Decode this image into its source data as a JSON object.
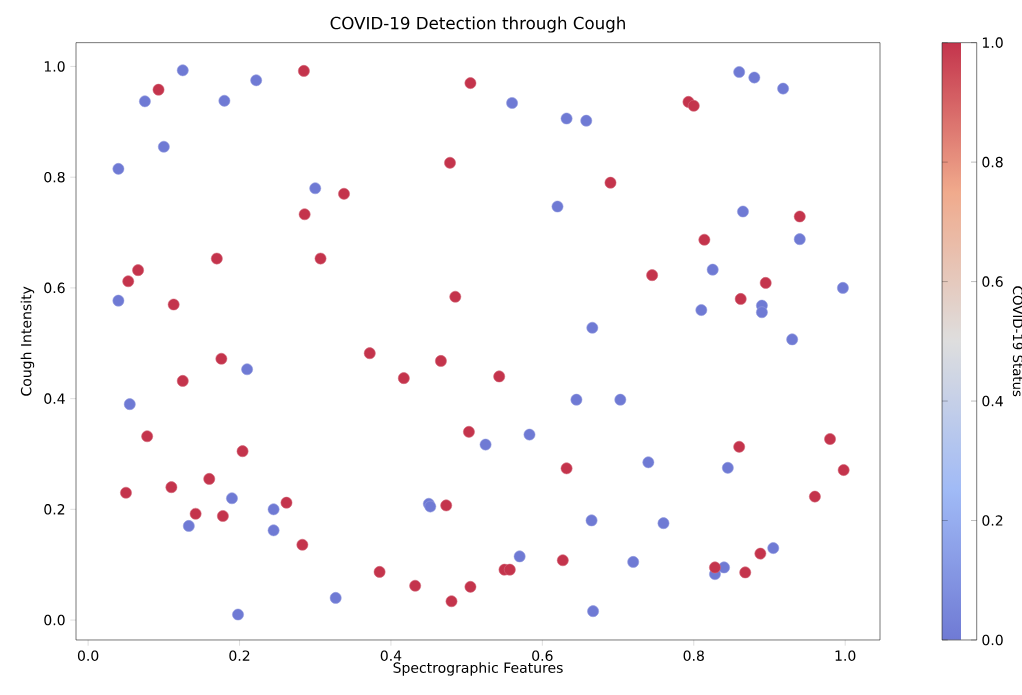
{
  "chart_data": {
    "type": "scatter",
    "title": "COVID-19 Detection through Cough",
    "xlabel": "Spectrographic Features",
    "ylabel": "Cough Intensity",
    "clabel": "COVID-19 Status",
    "marker": "circle",
    "x": [
      0.04,
      0.04,
      0.055,
      0.075,
      0.1,
      0.125,
      0.133,
      0.18,
      0.19,
      0.198,
      0.21,
      0.222,
      0.245,
      0.245,
      0.3,
      0.327,
      0.45,
      0.452,
      0.525,
      0.57,
      0.583,
      0.56,
      0.62,
      0.632,
      0.645,
      0.658,
      0.665,
      0.666,
      0.667,
      0.703,
      0.72,
      0.74,
      0.76,
      0.81,
      0.825,
      0.828,
      0.84,
      0.845,
      0.86,
      0.865,
      0.88,
      0.89,
      0.89,
      0.905,
      0.918,
      0.93,
      0.94,
      0.997,
      0.05,
      0.053,
      0.066,
      0.078,
      0.093,
      0.11,
      0.113,
      0.125,
      0.142,
      0.16,
      0.17,
      0.176,
      0.178,
      0.204,
      0.262,
      0.283,
      0.285,
      0.286,
      0.307,
      0.338,
      0.372,
      0.385,
      0.417,
      0.432,
      0.466,
      0.473,
      0.478,
      0.48,
      0.485,
      0.503,
      0.505,
      0.505,
      0.543,
      0.55,
      0.557,
      0.627,
      0.632,
      0.69,
      0.745,
      0.793,
      0.8,
      0.814,
      0.828,
      0.86,
      0.862,
      0.868,
      0.888,
      0.895,
      0.94,
      0.96,
      0.98,
      0.998
    ],
    "values": [
      0.815,
      0.577,
      0.39,
      0.937,
      0.855,
      0.993,
      0.17,
      0.938,
      0.22,
      0.01,
      0.453,
      0.975,
      0.2,
      0.162,
      0.78,
      0.04,
      0.21,
      0.205,
      0.317,
      0.115,
      0.335,
      0.934,
      0.747,
      0.906,
      0.398,
      0.902,
      0.18,
      0.528,
      0.016,
      0.398,
      0.105,
      0.285,
      0.175,
      0.56,
      0.633,
      0.083,
      0.095,
      0.275,
      0.99,
      0.738,
      0.98,
      0.568,
      0.556,
      0.13,
      0.96,
      0.507,
      0.688,
      0.6,
      0.23,
      0.612,
      0.632,
      0.332,
      0.958,
      0.24,
      0.57,
      0.432,
      0.192,
      0.255,
      0.653,
      0.472,
      0.188,
      0.305,
      0.212,
      0.136,
      0.992,
      0.733,
      0.653,
      0.77,
      0.482,
      0.087,
      0.437,
      0.062,
      0.468,
      0.207,
      0.826,
      0.034,
      0.584,
      0.34,
      0.97,
      0.06,
      0.44,
      0.091,
      0.091,
      0.108,
      0.274,
      0.79,
      0.623,
      0.936,
      0.929,
      0.687,
      0.095,
      0.313,
      0.58,
      0.086,
      0.12,
      0.609,
      0.729,
      0.223,
      0.327,
      0.271
    ],
    "cvalues": [
      0,
      0,
      0,
      0,
      0,
      0,
      0,
      0,
      0,
      0,
      0,
      0,
      0,
      0,
      0,
      0,
      0,
      0,
      0,
      0,
      0,
      0,
      0,
      0,
      0,
      0,
      0,
      0,
      0,
      0,
      0,
      0,
      0,
      0,
      0,
      0,
      0,
      0,
      0,
      0,
      0,
      0,
      0,
      0,
      0,
      0,
      0,
      0,
      1,
      1,
      1,
      1,
      1,
      1,
      1,
      1,
      1,
      1,
      1,
      1,
      1,
      1,
      1,
      1,
      1,
      1,
      1,
      1,
      1,
      1,
      1,
      1,
      1,
      1,
      1,
      1,
      1,
      1,
      1,
      1,
      1,
      1,
      1,
      1,
      1,
      1,
      1,
      1,
      1,
      1,
      1,
      1,
      1,
      1,
      1,
      1,
      1,
      1,
      1,
      1
    ],
    "xlim": [
      -0.016,
      1.046
    ],
    "ylim": [
      -0.036,
      1.043
    ],
    "xticks": [
      {
        "value": 0,
        "label": "0.0"
      },
      0.2,
      0.4,
      0.6,
      0.8,
      {
        "value": 1,
        "label": "1.0"
      }
    ],
    "yticks": [
      {
        "value": 0,
        "label": "0.0"
      },
      0.2,
      0.4,
      0.6,
      0.8,
      {
        "value": 1,
        "label": "1.0"
      }
    ],
    "clim": [
      0,
      1
    ],
    "cticks": [
      {
        "value": 0,
        "label": "0.0"
      },
      0.2,
      0.4,
      0.6,
      0.8,
      {
        "value": 1,
        "label": "1.0"
      }
    ]
  }
}
